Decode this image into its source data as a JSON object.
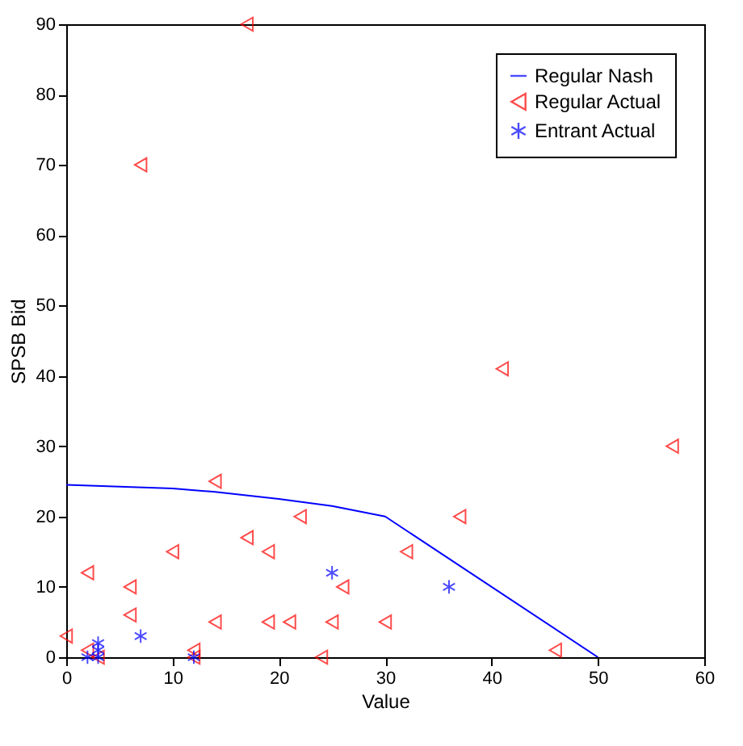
{
  "chart_data": {
    "type": "scatter",
    "xlabel": "Value",
    "ylabel": "SPSB Bid",
    "xlim": [
      0,
      60
    ],
    "ylim": [
      0,
      90
    ],
    "xticks": [
      0,
      10,
      20,
      30,
      40,
      50,
      60
    ],
    "yticks": [
      0,
      10,
      20,
      30,
      40,
      50,
      60,
      70,
      80,
      90
    ],
    "grid": false,
    "legend": "top right",
    "series": [
      {
        "name": "Regular Nash",
        "type": "line",
        "color": "#0000ff",
        "marker": "none",
        "x": [
          0,
          10,
          14,
          20,
          25,
          30,
          50
        ],
        "values": [
          24.5,
          24,
          23.5,
          22.5,
          21.5,
          20,
          0
        ]
      },
      {
        "name": "Regular Actual",
        "color": "#ff0000",
        "marker": "triangle",
        "x": [
          17,
          7,
          41,
          57,
          14,
          22,
          37,
          17,
          10,
          19,
          32,
          2,
          6,
          26,
          6,
          14,
          19,
          21,
          25,
          30,
          0,
          2,
          12,
          46,
          3,
          12,
          24
        ],
        "values": [
          90,
          70,
          41,
          30,
          25,
          20,
          20,
          17,
          15,
          15,
          15,
          12,
          10,
          10,
          6,
          5,
          5,
          5,
          5,
          5,
          3,
          1,
          1,
          1,
          0,
          0,
          0
        ]
      },
      {
        "name": "Entrant Actual",
        "color": "#0000ff",
        "marker": "cross",
        "x": [
          25,
          36,
          7,
          3,
          3,
          2,
          3,
          12
        ],
        "values": [
          12,
          10,
          3,
          2,
          1,
          0,
          0,
          0
        ]
      }
    ]
  }
}
